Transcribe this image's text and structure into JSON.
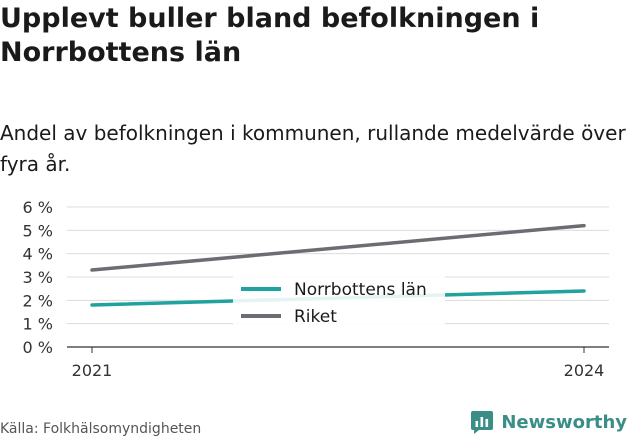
{
  "title": "Upplevt buller bland befolkningen i Norrbottens län",
  "subtitle": "Andel av befolkningen i kommunen, rullande medelvärde över fyra år.",
  "source": "Källa: Folkhälsomyndigheten",
  "brand": {
    "name": "Newsworthy",
    "icon": "newsworthy-logo-icon",
    "color": "#3a8e86"
  },
  "chart_data": {
    "type": "line",
    "title": "",
    "xlabel": "",
    "ylabel": "",
    "x": [
      "2021",
      "2024"
    ],
    "x_tick_labels": [
      "2021",
      "2024"
    ],
    "y_ticks": [
      0,
      1,
      2,
      3,
      4,
      5,
      6
    ],
    "y_tick_labels": [
      "0 %",
      "1 %",
      "2 %",
      "3 %",
      "4 %",
      "5 %",
      "6 %"
    ],
    "ylim": [
      0,
      6
    ],
    "grid": true,
    "legend_position": "center",
    "series": [
      {
        "name": "Norrbottens län",
        "color": "#20a39e",
        "values": [
          1.8,
          2.4
        ]
      },
      {
        "name": "Riket",
        "color": "#6d6c72",
        "values": [
          3.3,
          5.2
        ]
      }
    ]
  }
}
